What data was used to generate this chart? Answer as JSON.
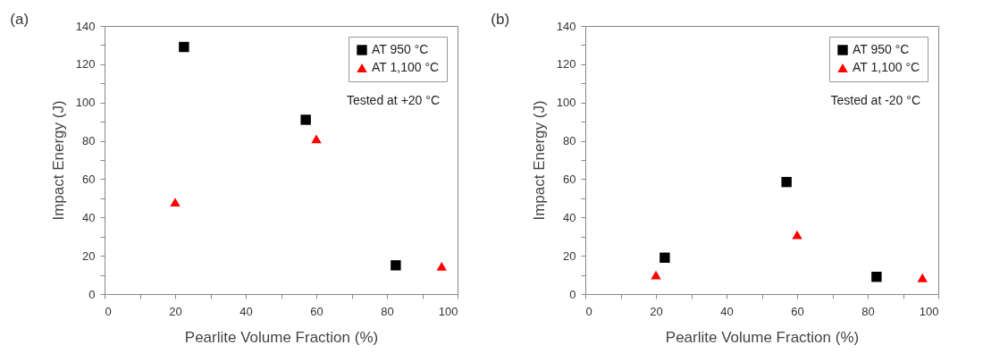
{
  "chart_data": [
    {
      "type": "scatter",
      "title": "(a)",
      "xlabel": "Pearlite Volume Fraction (%)",
      "ylabel": "Impact Energy (J)",
      "xlim": [
        0,
        100
      ],
      "ylim": [
        0,
        140
      ],
      "xticks": [
        0,
        {
          "value": 10,
          "label": null
        },
        20,
        {
          "value": 30,
          "label": null
        },
        40,
        {
          "value": 50,
          "label": null
        },
        60,
        {
          "value": 70,
          "label": null
        },
        80,
        {
          "value": 90,
          "label": null
        },
        100
      ],
      "yticks": [
        0,
        {
          "value": 10,
          "label": null
        },
        20,
        {
          "value": 30,
          "label": null
        },
        40,
        {
          "value": 50,
          "label": null
        },
        60,
        {
          "value": 70,
          "label": null
        },
        80,
        {
          "value": 90,
          "label": null
        },
        100,
        {
          "value": 110,
          "label": null
        },
        120,
        {
          "value": 130,
          "label": null
        },
        140
      ],
      "grid": false,
      "legend": "top right",
      "annotations": [
        "Tested at +20 °C"
      ],
      "series": [
        {
          "name": "AT 950 °C",
          "color": "#000000",
          "marker": "square",
          "x": [
            22.5,
            57,
            82.5
          ],
          "values": [
            129,
            91,
            15
          ]
        },
        {
          "name": "AT 1,100 °C",
          "color": "#ff0000",
          "marker": "triangle",
          "x": [
            20,
            60,
            95.5
          ],
          "values": [
            48,
            81,
            14.5
          ]
        }
      ]
    },
    {
      "type": "scatter",
      "title": "(b)",
      "xlabel": "Pearlite Volume Fraction (%)",
      "ylabel": "Impact Energy (J)",
      "xlim": [
        0,
        100
      ],
      "ylim": [
        0,
        140
      ],
      "xticks": [
        0,
        {
          "value": 10,
          "label": null
        },
        20,
        {
          "value": 30,
          "label": null
        },
        40,
        {
          "value": 50,
          "label": null
        },
        60,
        {
          "value": 70,
          "label": null
        },
        80,
        {
          "value": 90,
          "label": null
        },
        100
      ],
      "yticks": [
        0,
        {
          "value": 10,
          "label": null
        },
        20,
        {
          "value": 30,
          "label": null
        },
        40,
        {
          "value": 50,
          "label": null
        },
        60,
        {
          "value": 70,
          "label": null
        },
        80,
        {
          "value": 90,
          "label": null
        },
        100,
        {
          "value": 110,
          "label": null
        },
        120,
        {
          "value": 130,
          "label": null
        },
        140
      ],
      "grid": false,
      "legend": "top right",
      "annotations": [
        "Tested at -20 °C"
      ],
      "series": [
        {
          "name": "AT 950 °C",
          "color": "#000000",
          "marker": "square",
          "x": [
            22.5,
            57,
            82.5
          ],
          "values": [
            19,
            58.5,
            9
          ]
        },
        {
          "name": "AT 1,100 °C",
          "color": "#ff0000",
          "marker": "triangle",
          "x": [
            20,
            60,
            95.5
          ],
          "values": [
            10,
            31,
            8.5
          ]
        }
      ]
    }
  ]
}
